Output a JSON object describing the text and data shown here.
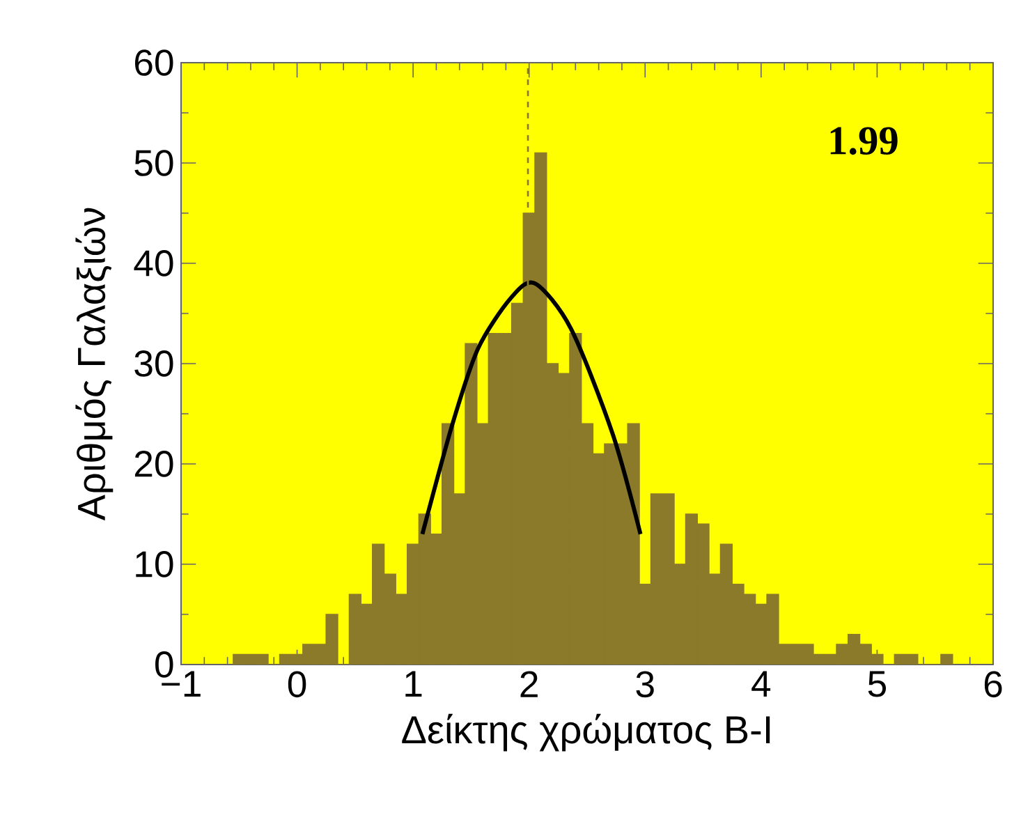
{
  "chart_data": {
    "type": "histogram",
    "xlabel": "Δείκτης χρώματος B-I",
    "ylabel": "Αριθμός Γαλαξιών",
    "annotations": [
      "1.99"
    ],
    "bins": [
      -0.55,
      -0.45,
      -0.35,
      -0.25,
      -0.15,
      -0.05,
      0.05,
      0.15,
      0.25,
      0.35,
      0.45,
      0.55,
      0.65,
      0.75,
      0.85,
      0.95,
      1.05,
      1.15,
      1.25,
      1.35,
      1.45,
      1.55,
      1.65,
      1.75,
      1.85,
      1.95,
      2.05,
      2.15,
      2.25,
      2.35,
      2.45,
      2.55,
      2.65,
      2.75,
      2.85,
      2.95,
      3.05,
      3.15,
      3.25,
      3.35,
      3.45,
      3.55,
      3.65,
      3.75,
      3.85,
      3.95,
      4.05,
      4.15,
      4.25,
      4.35,
      4.45,
      4.55,
      4.65,
      4.75,
      4.85,
      4.95,
      5.05,
      5.15,
      5.25,
      5.35,
      5.45,
      5.55,
      5.65
    ],
    "series": [
      {
        "color": "#8a7a2a",
        "values": [
          1,
          1,
          1,
          0,
          1,
          1,
          2,
          2,
          5,
          0,
          7,
          6,
          12,
          9,
          7,
          12,
          15,
          13,
          24,
          17,
          32,
          24,
          33,
          33,
          36,
          45,
          51,
          30,
          29,
          33,
          24,
          21,
          22,
          22,
          24,
          8,
          17,
          17,
          10,
          15,
          14,
          9,
          12,
          8,
          7,
          6,
          7,
          2,
          2,
          2,
          1,
          1,
          2,
          3,
          2,
          1,
          0,
          1,
          1,
          0,
          0,
          1
        ]
      },
      {
        "type": "line",
        "color": "#000000",
        "x": [
          1.08,
          1.34,
          1.56,
          1.84,
          2.05,
          2.36,
          2.72,
          2.96
        ],
        "values": [
          13,
          24,
          31.5,
          36.5,
          38,
          33.5,
          23,
          13
        ]
      }
    ],
    "ref_lines": [
      {
        "axis": "x",
        "value": 1.99,
        "color": "#8a7a2a",
        "line_style": "dashed"
      }
    ],
    "xlim": [
      -1,
      6
    ],
    "ylim": [
      0,
      60
    ],
    "xticks": [
      {
        "value": -1,
        "label": "−1"
      },
      0,
      1,
      2,
      3,
      4,
      5,
      6
    ],
    "yticks": [
      0,
      10,
      20,
      30,
      40,
      50,
      60
    ]
  }
}
